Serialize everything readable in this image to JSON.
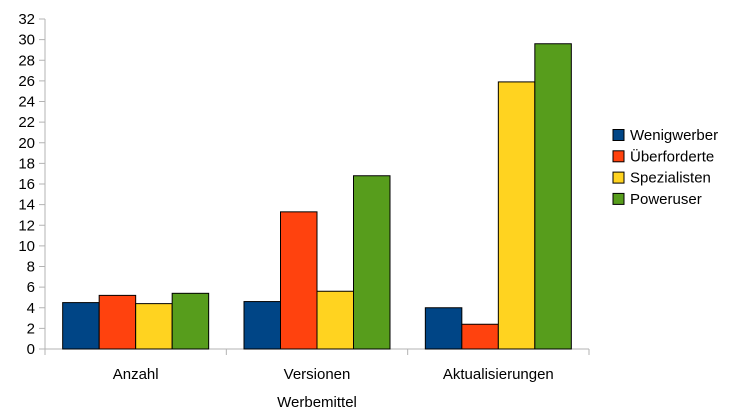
{
  "chart_data": {
    "type": "bar",
    "title": "",
    "xlabel": "Werbemittel",
    "ylabel": "",
    "ylim": [
      0,
      32
    ],
    "ytick_step": 2,
    "grid": false,
    "legend_placement": "right",
    "categories": [
      "Anzahl",
      "Versionen",
      "Aktualisierungen"
    ],
    "series": [
      {
        "name": "Wenigwerber",
        "color": "#004586",
        "values": [
          4.5,
          4.6,
          4.0
        ]
      },
      {
        "name": "Überforderte",
        "color": "#ff420e",
        "values": [
          5.2,
          13.3,
          2.4
        ]
      },
      {
        "name": "Spezialisten",
        "color": "#ffd320",
        "values": [
          4.4,
          5.6,
          25.9
        ]
      },
      {
        "name": "Poweruser",
        "color": "#579d1c",
        "values": [
          5.4,
          16.8,
          29.6
        ]
      }
    ]
  }
}
